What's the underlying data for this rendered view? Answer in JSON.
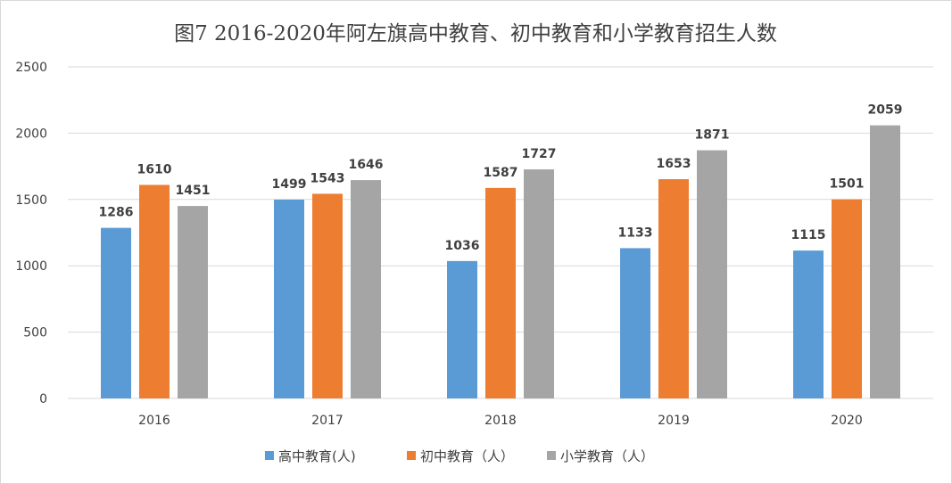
{
  "chart_data": {
    "type": "bar",
    "title": "图7 2016-2020年阿左旗高中教育、初中教育和小学教育招生人数",
    "categories": [
      "2016",
      "2017",
      "2018",
      "2019",
      "2020"
    ],
    "series": [
      {
        "name": "高中教育(人)",
        "color": "#5b9bd5",
        "values": [
          1286,
          1499,
          1036,
          1133,
          1115
        ]
      },
      {
        "name": "初中教育（人）",
        "color": "#ed7d31",
        "values": [
          1610,
          1543,
          1587,
          1653,
          1501
        ]
      },
      {
        "name": "小学教育（人）",
        "color": "#a5a5a5",
        "values": [
          1451,
          1646,
          1727,
          1871,
          2059
        ]
      }
    ],
    "ylim": [
      0,
      2500
    ],
    "yticks": [
      0,
      500,
      1000,
      1500,
      2000,
      2500
    ],
    "grid": true,
    "legend": "bottom"
  }
}
